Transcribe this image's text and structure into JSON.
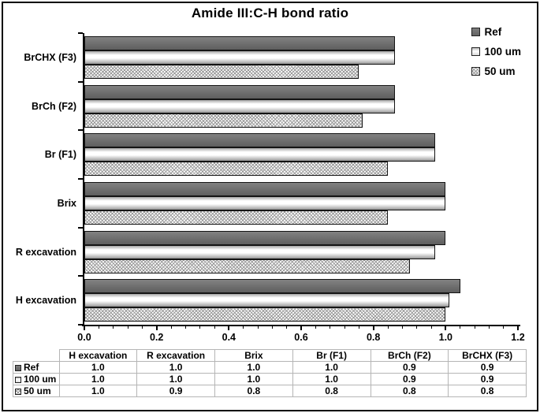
{
  "title": "Amide III:C-H bond ratio",
  "chart_data": {
    "type": "bar",
    "orientation": "horizontal",
    "title": "Amide III:C-H bond ratio",
    "categories_top_to_bottom": [
      "BrCHX (F3)",
      "BrCh (F2)",
      "Br (F1)",
      "Brix",
      "R excavation",
      "H excavation"
    ],
    "series": [
      {
        "name": "Ref",
        "marker": "solid-dark",
        "values_top_to_bottom": [
          0.86,
          0.86,
          0.97,
          1.0,
          1.0,
          1.04
        ]
      },
      {
        "name": "100 um",
        "marker": "light",
        "values_top_to_bottom": [
          0.86,
          0.86,
          0.97,
          1.0,
          0.97,
          1.01
        ]
      },
      {
        "name": "50 um",
        "marker": "hatch",
        "values_top_to_bottom": [
          0.76,
          0.77,
          0.84,
          0.84,
          0.9,
          1.0
        ]
      }
    ],
    "xlim": [
      0,
      1.2
    ],
    "x_major_tick_step": 0.2,
    "x_minor_tick_step": 0.04,
    "x_tick_labels": [
      "0.0",
      "0.2",
      "0.4",
      "0.6",
      "0.8",
      "1.0",
      "1.2"
    ],
    "grid": false,
    "legend_position": "top-right"
  },
  "table": {
    "columns": [
      "H excavation",
      "R excavation",
      "Brix",
      "Br (F1)",
      "BrCh (F2)",
      "BrCHX (F3)"
    ],
    "rows": [
      {
        "label": "Ref",
        "marker": "solid-dark",
        "values": [
          "1.0",
          "1.0",
          "1.0",
          "1.0",
          "0.9",
          "0.9"
        ]
      },
      {
        "label": "100 um",
        "marker": "light",
        "values": [
          "1.0",
          "1.0",
          "1.0",
          "1.0",
          "0.9",
          "0.9"
        ]
      },
      {
        "label": "50 um",
        "marker": "hatch",
        "values": [
          "1.0",
          "0.9",
          "0.8",
          "0.8",
          "0.8",
          "0.8"
        ]
      }
    ]
  },
  "colors": {
    "ref_fill": "#6e6e6e",
    "light_fill_top": "#a6a6a6",
    "light_fill_mid": "#ffffff",
    "hatch_line": "#9a9a9a",
    "bar_border": "#141414",
    "axis": "#000000",
    "table_border": "#b5b5b5",
    "text": "#000000",
    "frame_border": "#000000",
    "background": "#ffffff"
  }
}
